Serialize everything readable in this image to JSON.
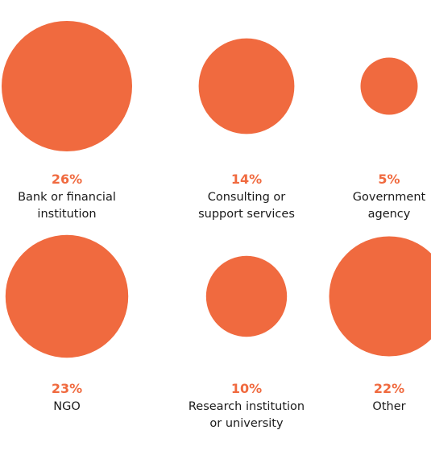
{
  "chart_data": {
    "type": "bubble",
    "color": "#f06a3f",
    "label_color": "#1a1a1a",
    "items": [
      {
        "value": 26,
        "pct_label": "26%",
        "label_lines": [
          "Bank or financial",
          "institution"
        ]
      },
      {
        "value": 14,
        "pct_label": "14%",
        "label_lines": [
          "Consulting or",
          "support services"
        ]
      },
      {
        "value": 5,
        "pct_label": "5%",
        "label_lines": [
          "Government",
          "agency"
        ]
      },
      {
        "value": 23,
        "pct_label": "23%",
        "label_lines": [
          "NGO"
        ]
      },
      {
        "value": 10,
        "pct_label": "10%",
        "label_lines": [
          "Research institution",
          "or university"
        ]
      },
      {
        "value": 22,
        "pct_label": "22%",
        "label_lines": [
          "Other"
        ]
      }
    ]
  }
}
